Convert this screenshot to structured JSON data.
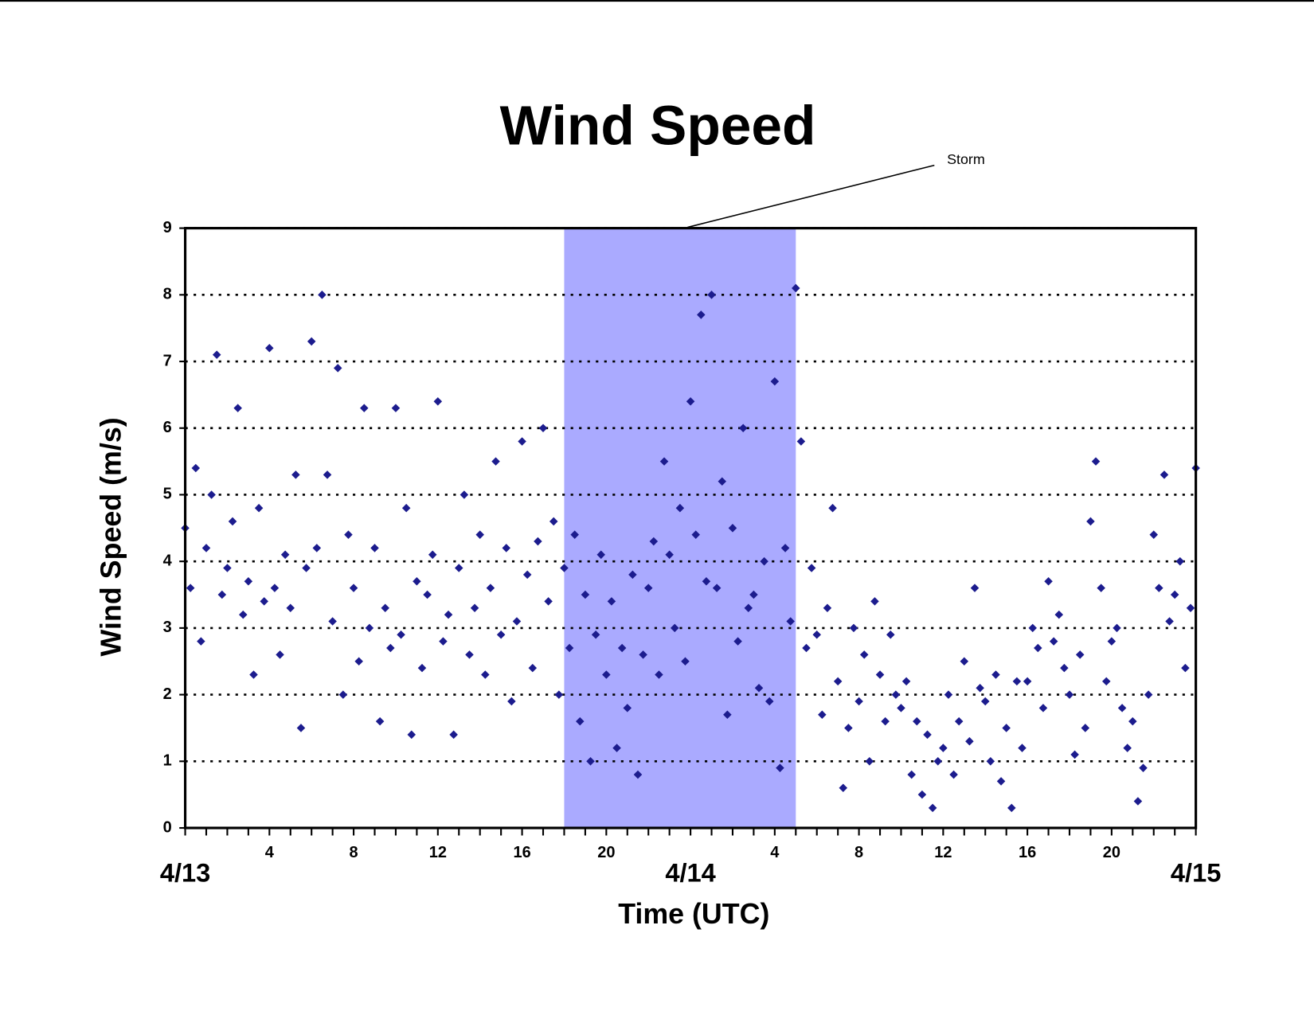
{
  "chart_data": {
    "type": "scatter",
    "title": "Wind Speed",
    "x_label": "Time (UTC)",
    "y_label": "Wind Speed (m/s)",
    "storm": {
      "label": "Storm",
      "start": 18,
      "end": 29,
      "color": "#aaaaff"
    },
    "xlim": [
      0,
      48
    ],
    "xticks": [
      4,
      8,
      12,
      16,
      20,
      {
        "value": 28,
        "label": "4"
      },
      {
        "value": 32,
        "label": "8"
      },
      {
        "value": 36,
        "label": "12"
      },
      {
        "value": 40,
        "label": "16"
      },
      {
        "value": 44,
        "label": "20"
      }
    ],
    "date_labels": [
      {
        "value": 0,
        "label": "4/13"
      },
      {
        "value": 24,
        "label": "4/14"
      },
      {
        "value": 48,
        "label": "4/15"
      }
    ],
    "xminorticks": [
      0,
      1,
      2,
      3,
      4,
      5,
      6,
      7,
      8,
      9,
      10,
      11,
      12,
      13,
      14,
      15,
      16,
      17,
      18,
      19,
      20,
      21,
      22,
      23,
      24,
      25,
      26,
      27,
      28,
      29,
      30,
      31,
      32,
      33,
      34,
      35,
      36,
      37,
      38,
      39,
      40,
      41,
      42,
      43,
      44,
      45,
      46,
      47,
      48
    ],
    "ylim": [
      0,
      9
    ],
    "yticks": [
      0,
      1,
      2,
      3,
      4,
      5,
      6,
      7,
      8,
      9
    ],
    "grid": true,
    "color": "#1c1c8e",
    "x": [
      0,
      0.25,
      0.5,
      0.75,
      1,
      1.25,
      1.5,
      1.75,
      2,
      2.25,
      2.5,
      2.75,
      3,
      3.25,
      3.5,
      3.75,
      4,
      4.25,
      4.5,
      4.75,
      5,
      5.25,
      5.5,
      5.75,
      6,
      6.25,
      6.5,
      6.75,
      7,
      7.25,
      7.5,
      7.75,
      8,
      8.25,
      8.5,
      8.75,
      9,
      9.25,
      9.5,
      9.75,
      10,
      10.25,
      10.5,
      10.75,
      11,
      11.25,
      11.5,
      11.75,
      12,
      12.25,
      12.5,
      12.75,
      13,
      13.25,
      13.5,
      13.75,
      14,
      14.25,
      14.5,
      14.75,
      15,
      15.25,
      15.5,
      15.75,
      16,
      16.25,
      16.5,
      16.75,
      17,
      17.25,
      17.5,
      17.75,
      18,
      18.25,
      18.5,
      18.75,
      19,
      19.25,
      19.5,
      19.75,
      20,
      20.25,
      20.5,
      20.75,
      21,
      21.25,
      21.5,
      21.75,
      22,
      22.25,
      22.5,
      22.75,
      23,
      23.25,
      23.5,
      23.75,
      24,
      24.25,
      24.5,
      24.75,
      25,
      25.25,
      25.5,
      25.75,
      26,
      26.25,
      26.5,
      26.75,
      27,
      27.25,
      27.5,
      27.75,
      28,
      28.25,
      28.5,
      28.75,
      29,
      29.25,
      29.5,
      29.75,
      30,
      30.25,
      30.5,
      30.75,
      31,
      31.25,
      31.5,
      31.75,
      32,
      32.25,
      32.5,
      32.75,
      33,
      33.25,
      33.5,
      33.75,
      34,
      34.25,
      34.5,
      34.75,
      35,
      35.25,
      35.5,
      35.75,
      36,
      36.25,
      36.5,
      36.75,
      37,
      37.25,
      37.5,
      37.75,
      38,
      38.25,
      38.5,
      38.75,
      39,
      39.25,
      39.5,
      39.75,
      40,
      40.25,
      40.5,
      40.75,
      41,
      41.25,
      41.5,
      41.75,
      42,
      42.25,
      42.5,
      42.75,
      43,
      43.25,
      43.5,
      43.75,
      44,
      44.25,
      44.5,
      44.75,
      45,
      45.25,
      45.5,
      45.75,
      46,
      46.25,
      46.5,
      46.75,
      47,
      47.25,
      47.5,
      47.75,
      48
    ],
    "values": [
      4.5,
      3.6,
      5.4,
      2.8,
      4.2,
      5.0,
      7.1,
      3.5,
      3.9,
      4.6,
      6.3,
      3.2,
      3.7,
      2.3,
      4.8,
      3.4,
      7.2,
      3.6,
      2.6,
      4.1,
      3.3,
      5.3,
      1.5,
      3.9,
      7.3,
      4.2,
      8.0,
      5.3,
      3.1,
      6.9,
      2.0,
      4.4,
      3.6,
      2.5,
      6.3,
      3.0,
      4.2,
      1.6,
      3.3,
      2.7,
      6.3,
      2.9,
      4.8,
      1.4,
      3.7,
      2.4,
      3.5,
      4.1,
      6.4,
      2.8,
      3.2,
      1.4,
      3.9,
      5.0,
      2.6,
      3.3,
      4.4,
      2.3,
      3.6,
      5.5,
      2.9,
      4.2,
      1.9,
      3.1,
      5.8,
      3.8,
      2.4,
      4.3,
      6.0,
      3.4,
      4.6,
      2.0,
      3.9,
      2.7,
      4.4,
      1.6,
      3.5,
      1.0,
      2.9,
      4.1,
      2.3,
      3.4,
      1.2,
      2.7,
      1.8,
      3.8,
      0.8,
      2.6,
      3.6,
      4.3,
      2.3,
      5.5,
      4.1,
      3.0,
      4.8,
      2.5,
      6.4,
      4.4,
      7.7,
      3.7,
      8.0,
      3.6,
      5.2,
      1.7,
      4.5,
      2.8,
      6.0,
      3.3,
      3.5,
      2.1,
      4.0,
      1.9,
      6.7,
      0.9,
      4.2,
      3.1,
      8.1,
      5.8,
      2.7,
      3.9,
      2.9,
      1.7,
      3.3,
      4.8,
      2.2,
      0.6,
      1.5,
      3.0,
      1.9,
      2.6,
      1.0,
      3.4,
      2.3,
      1.6,
      2.9,
      2.0,
      1.8,
      2.2,
      0.8,
      1.6,
      0.5,
      1.4,
      0.3,
      1.0,
      1.2,
      2.0,
      0.8,
      1.6,
      2.5,
      1.3,
      3.6,
      2.1,
      1.9,
      1.0,
      2.3,
      0.7,
      1.5,
      0.3,
      2.2,
      1.2,
      2.2,
      3.0,
      2.7,
      1.8,
      3.7,
      2.8,
      3.2,
      2.4,
      2.0,
      1.1,
      2.6,
      1.5,
      4.6,
      5.5,
      3.6,
      2.2,
      2.8,
      3.0,
      1.8,
      1.2,
      1.6,
      0.4,
      0.9,
      2.0,
      4.4,
      3.6,
      5.3,
      3.1,
      3.5,
      4.0,
      2.4,
      3.3,
      5.4
    ]
  }
}
